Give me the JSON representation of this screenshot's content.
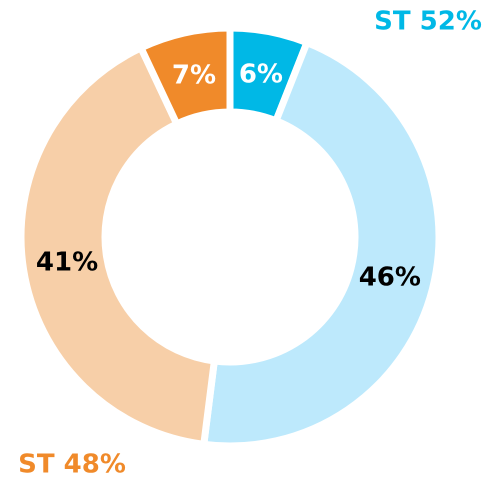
{
  "chart_data": {
    "type": "donut",
    "categories": [
      null,
      null,
      null,
      null
    ],
    "values": [
      6,
      46,
      41,
      7
    ],
    "value_labels": [
      "6%",
      "46%",
      "41%",
      "7%"
    ],
    "colors": [
      "#00b8e6",
      "#bde9fc",
      "#f7cfa8",
      "#f08a2a"
    ],
    "annotations": [
      {
        "text": "ST 52%",
        "color": "#00b8e6"
      },
      {
        "text": "ST 48%",
        "color": "#f08a2a"
      }
    ]
  }
}
